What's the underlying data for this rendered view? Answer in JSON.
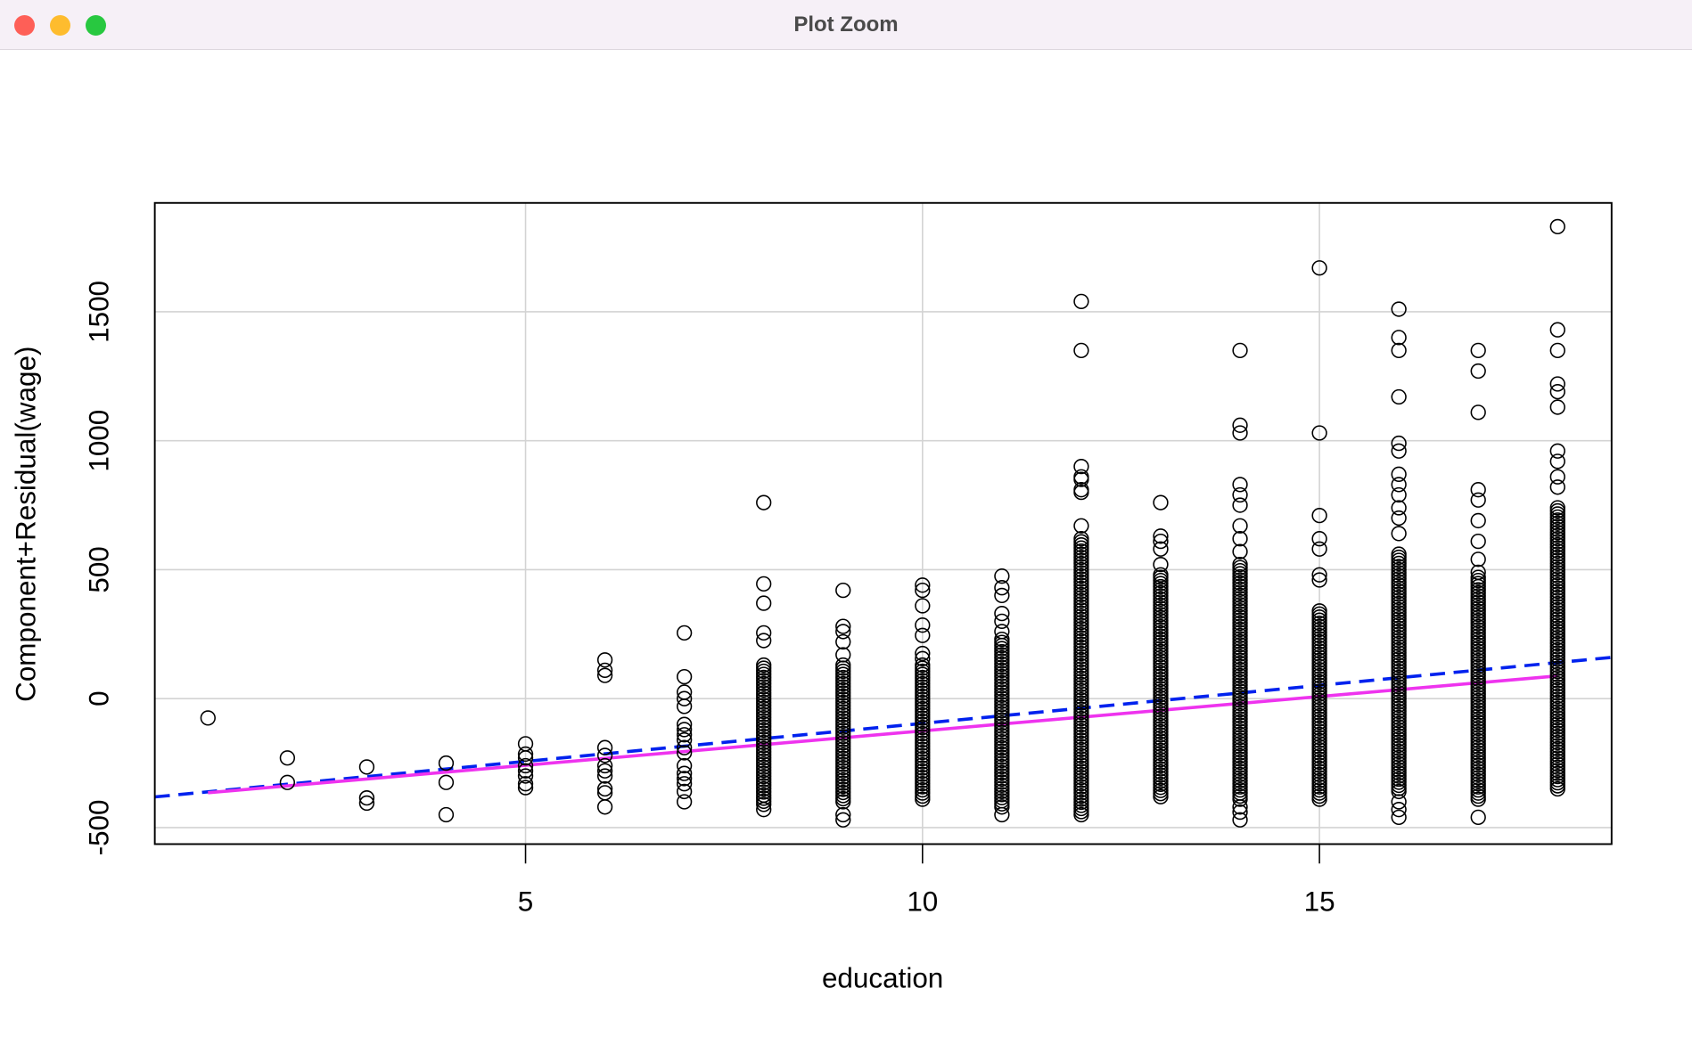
{
  "window": {
    "title": "Plot Zoom",
    "buttons": {
      "close": "#fe5f57",
      "minimize": "#febc2e",
      "zoom": "#28c840"
    }
  },
  "chart_data": {
    "type": "scatter",
    "xlabel": "education",
    "ylabel": "Component+Residual(wage)",
    "xlim": [
      0.33,
      18.68
    ],
    "ylim": [
      -564,
      1922
    ],
    "xticks": [
      5,
      10,
      15
    ],
    "yticks": [
      -500,
      0,
      500,
      1000,
      1500
    ],
    "xtick_labels": [
      "5",
      "10",
      "15"
    ],
    "ytick_labels": [
      "-500",
      "0",
      "500",
      "1000",
      "1500"
    ],
    "grid": true,
    "groups": [
      {
        "x": 1,
        "points": [
          -75
        ]
      },
      {
        "x": 2,
        "points": [
          -230,
          -325
        ]
      },
      {
        "x": 3,
        "points": [
          -265,
          -385,
          -405
        ]
      },
      {
        "x": 4,
        "points": [
          -250,
          -325,
          -450
        ]
      },
      {
        "x": 5,
        "points": [
          -175,
          -215,
          -230,
          -260,
          -280,
          -300,
          -330,
          -345
        ]
      },
      {
        "x": 6,
        "points": [
          150,
          110,
          90,
          -190,
          -220,
          -260,
          -280,
          -300,
          -350,
          -365,
          -420
        ]
      },
      {
        "x": 7,
        "points": [
          255,
          85,
          25,
          0,
          -30,
          -100,
          -120,
          -140,
          -160,
          -190,
          -210,
          -260,
          -290,
          -310,
          -330,
          -360,
          -400
        ]
      },
      {
        "x": 8,
        "points": [
          760,
          445,
          370,
          255,
          225,
          -430
        ],
        "dense": [
          -410,
          130
        ]
      },
      {
        "x": 9,
        "points": [
          420,
          280,
          260,
          220,
          170,
          -450,
          -470
        ],
        "dense": [
          -400,
          130
        ]
      },
      {
        "x": 10,
        "points": [
          440,
          420,
          360,
          285,
          245,
          175,
          155
        ],
        "dense": [
          -390,
          130
        ]
      },
      {
        "x": 11,
        "points": [
          475,
          430,
          400,
          330,
          300,
          260,
          -450
        ],
        "dense": [
          -420,
          230
        ]
      },
      {
        "x": 12,
        "points": [
          1540,
          1350,
          900,
          860,
          850,
          810,
          800,
          670
        ],
        "dense": [
          -450,
          620
        ]
      },
      {
        "x": 13,
        "points": [
          760,
          630,
          610,
          580,
          520,
          480
        ],
        "dense": [
          -380,
          470
        ]
      },
      {
        "x": 14,
        "points": [
          1350,
          1060,
          1030,
          830,
          790,
          750,
          670,
          620,
          570,
          -420,
          -440,
          -470
        ],
        "dense": [
          -390,
          520
        ]
      },
      {
        "x": 15,
        "points": [
          1670,
          1030,
          710,
          620,
          580,
          480,
          460
        ],
        "dense": [
          -390,
          340
        ]
      },
      {
        "x": 16,
        "points": [
          1510,
          1400,
          1350,
          1170,
          990,
          960,
          870,
          830,
          790,
          740,
          700,
          640,
          -400,
          -430,
          -460
        ],
        "dense": [
          -360,
          560
        ]
      },
      {
        "x": 17,
        "points": [
          1350,
          1270,
          1110,
          810,
          770,
          690,
          610,
          540,
          490,
          -460
        ],
        "dense": [
          -390,
          470
        ]
      },
      {
        "x": 18,
        "points": [
          1830,
          1430,
          1350,
          1220,
          1190,
          1130,
          960,
          920,
          860,
          820
        ],
        "dense": [
          -350,
          740
        ]
      }
    ],
    "series": [
      {
        "name": "linear fit",
        "style": "dashed",
        "color": "#0022ee",
        "x": [
          0.33,
          18.68
        ],
        "y": [
          -381,
          160
        ]
      },
      {
        "name": "smooth",
        "style": "solid",
        "color": "#ee33ee",
        "x": [
          1,
          18
        ],
        "y": [
          -365,
          88
        ]
      }
    ]
  }
}
